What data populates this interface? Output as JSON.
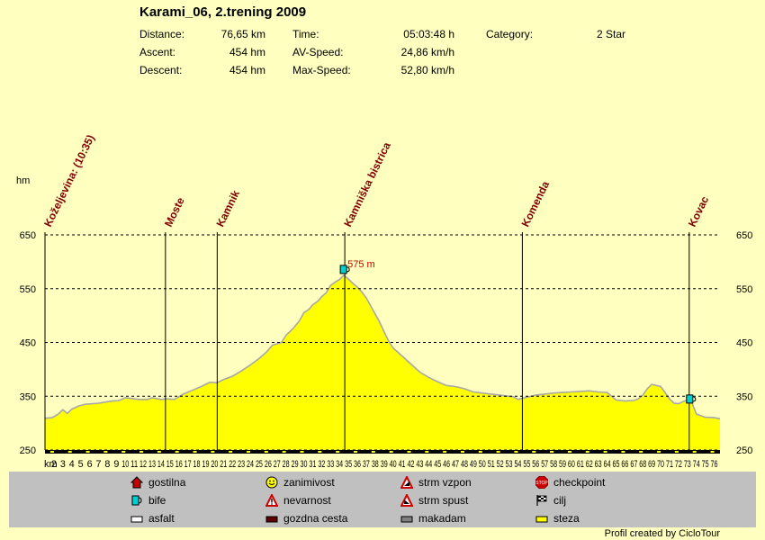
{
  "title": "Karami_06, 2.trening 2009",
  "stats": {
    "distance_label": "Distance:",
    "distance_value": "76,65 km",
    "ascent_label": "Ascent:",
    "ascent_value": "454 hm",
    "descent_label": "Descent:",
    "descent_value": "454 hm",
    "time_label": "Time:",
    "time_value": "05:03:48 h",
    "avspeed_label": "AV-Speed:",
    "avspeed_value": "24,86 km/h",
    "maxspeed_label": "Max-Speed:",
    "maxspeed_value": "52,80 km/h",
    "category_label": "Category:",
    "category_value": "2 Star"
  },
  "colors": {
    "background": "#ffffc0",
    "fill": "#ffff00",
    "outline": "#a8a8a8",
    "waypoint_text": "#800000",
    "peak_text": "#cc0000",
    "legend_bg": "#c0c0c0"
  },
  "chart_data": {
    "type": "area",
    "title": "Karami_06, 2.trening 2009",
    "xlabel": "km",
    "ylabel": "hm",
    "ylim": [
      250,
      650
    ],
    "xlim": [
      1,
      76.65
    ],
    "yticks": [
      "250",
      "350",
      "450",
      "550",
      "650"
    ],
    "xticks": [
      "2",
      "3",
      "4",
      "5",
      "6",
      "7",
      "8",
      "9",
      "10",
      "11",
      "12",
      "13",
      "14",
      "15",
      "16",
      "17",
      "18",
      "19",
      "20",
      "21",
      "22",
      "23",
      "24",
      "25",
      "26",
      "27",
      "28",
      "29",
      "30",
      "31",
      "32",
      "33",
      "34",
      "35",
      "36",
      "37",
      "38",
      "39",
      "40",
      "41",
      "42",
      "43",
      "44",
      "45",
      "46",
      "47",
      "48",
      "49",
      "50",
      "51",
      "52",
      "53",
      "54",
      "55",
      "56",
      "57",
      "58",
      "59",
      "60",
      "61",
      "62",
      "63",
      "64",
      "65",
      "66",
      "67",
      "68",
      "69",
      "70",
      "71",
      "72",
      "73",
      "74",
      "75",
      "76"
    ],
    "grid": true,
    "series": [
      {
        "x": [
          1,
          1.8,
          2.5,
          3,
          3.5,
          4,
          4.8,
          5.5,
          7,
          8.5,
          9.3,
          10,
          10.5,
          11.5,
          12.5,
          13,
          14,
          14.7,
          15.5,
          16.5,
          17.5,
          18.5,
          19.5,
          20.3,
          21,
          22,
          23,
          24,
          25,
          25.8,
          26.5,
          27.5,
          28,
          28.8,
          29.5,
          30,
          30.6,
          31,
          31.6,
          32,
          32.5,
          33,
          33.5,
          34,
          34.5,
          35,
          35.5,
          36,
          36.5,
          37,
          37.5,
          38,
          38.5,
          39,
          39.5,
          40,
          41,
          42,
          43,
          44,
          45,
          46,
          47,
          48,
          49,
          50,
          51,
          52,
          53,
          53.5,
          54,
          55,
          56,
          57,
          58,
          59,
          60,
          61,
          62,
          63,
          64,
          65,
          66,
          67,
          67.5,
          68,
          68.5,
          69,
          70,
          70.5,
          71,
          71.5,
          72,
          72.5,
          73,
          73.5,
          74,
          75,
          76,
          76.65
        ],
        "y": [
          309,
          310,
          317,
          325,
          318,
          326,
          332,
          335,
          337,
          341,
          342,
          347,
          346,
          344,
          344,
          347,
          344,
          345,
          344,
          354,
          361,
          368,
          376,
          375,
          381,
          387,
          397,
          408,
          420,
          432,
          445,
          450,
          463,
          476,
          490,
          505,
          512,
          520,
          527,
          535,
          542,
          556,
          562,
          567,
          575,
          568,
          560,
          553,
          544,
          533,
          518,
          503,
          488,
          470,
          453,
          440,
          425,
          410,
          395,
          385,
          377,
          370,
          368,
          364,
          358,
          356,
          354,
          352,
          350,
          349,
          344,
          348,
          352,
          354,
          356,
          357,
          358,
          359,
          360,
          358,
          357,
          343,
          341,
          342,
          345,
          352,
          364,
          372,
          368,
          357,
          345,
          337,
          336,
          340,
          343,
          338,
          317,
          311,
          310,
          308
        ]
      }
    ],
    "waypoints": [
      {
        "label": "Koželjevina: (10:35)",
        "km": 1
      },
      {
        "label": "Moste",
        "km": 14.5
      },
      {
        "label": "Kamnik",
        "km": 20.3
      },
      {
        "label": "Kamniška bistrica",
        "km": 34.6
      },
      {
        "label": "Komenda",
        "km": 54.5
      },
      {
        "label": "Kovac",
        "km": 73.2
      }
    ],
    "peak_label": "575 m",
    "peak": {
      "km": 34.5,
      "elevation": 575
    },
    "markers": [
      {
        "type": "bife",
        "km": 34.5,
        "elevation": 585
      },
      {
        "type": "bife",
        "km": 73.3,
        "elevation": 344
      }
    ]
  },
  "legend": [
    {
      "label": "gostilna",
      "icon": "house-icon"
    },
    {
      "label": "zanimivost",
      "icon": "smiley-icon"
    },
    {
      "label": "strm vzpon",
      "icon": "warning-uphill-icon"
    },
    {
      "label": "checkpoint",
      "icon": "stop-sign-icon"
    },
    {
      "label": "bife",
      "icon": "cup-icon"
    },
    {
      "label": "nevarnost",
      "icon": "warning-exclamation-icon"
    },
    {
      "label": "strm spust",
      "icon": "warning-downhill-icon"
    },
    {
      "label": "cilj",
      "icon": "checkered-flag-icon"
    },
    {
      "label": "asfalt",
      "icon": "surface-white-swatch"
    },
    {
      "label": "gozdna cesta",
      "icon": "surface-darkred-swatch"
    },
    {
      "label": "makadam",
      "icon": "surface-gray-swatch"
    },
    {
      "label": "steza",
      "icon": "surface-yellow-swatch"
    }
  ],
  "credit": "Profil created by CicloTour"
}
